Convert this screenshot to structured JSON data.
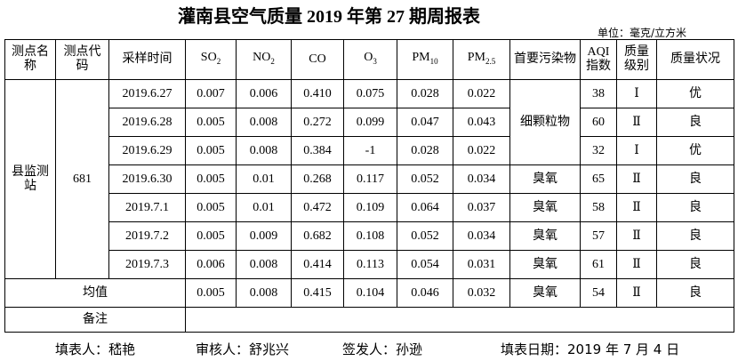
{
  "header": {
    "title": "灌南县空气质量 2019 年第 27 期周报表",
    "unit": "单位：毫克/立方米"
  },
  "table": {
    "columns": [
      {
        "text": "测点名称"
      },
      {
        "text": "测点代码"
      },
      {
        "text": "采样时间"
      },
      {
        "text": "SO",
        "sub": "2"
      },
      {
        "text": "NO",
        "sub": "2"
      },
      {
        "text": "CO"
      },
      {
        "text": "O",
        "sub": "3"
      },
      {
        "text": "PM",
        "sub": "10"
      },
      {
        "text": "PM",
        "sub": "2.5"
      },
      {
        "text": "首要污染物"
      },
      {
        "text": "AQI指数"
      },
      {
        "text": "质量级别"
      },
      {
        "text": "质量状况"
      }
    ],
    "station": "县监测站",
    "code": "681",
    "rows": [
      [
        "2019.6.27",
        "0.007",
        "0.006",
        "0.410",
        "0.075",
        "0.028",
        "0.022",
        "38",
        "Ⅰ",
        "优"
      ],
      [
        "2019.6.28",
        "0.005",
        "0.008",
        "0.272",
        "0.099",
        "0.047",
        "0.043",
        "60",
        "Ⅱ",
        "良"
      ],
      [
        "2019.6.29",
        "0.005",
        "0.008",
        "0.384",
        "-1",
        "0.028",
        "0.022",
        "32",
        "Ⅰ",
        "优"
      ],
      [
        "2019.6.30",
        "0.005",
        "0.01",
        "0.268",
        "0.117",
        "0.052",
        "0.034",
        "65",
        "Ⅱ",
        "良"
      ],
      [
        "2019.7.1",
        "0.005",
        "0.01",
        "0.472",
        "0.109",
        "0.064",
        "0.037",
        "58",
        "Ⅱ",
        "良"
      ],
      [
        "2019.7.2",
        "0.005",
        "0.009",
        "0.682",
        "0.108",
        "0.052",
        "0.034",
        "57",
        "Ⅱ",
        "良"
      ],
      [
        "2019.7.3",
        "0.006",
        "0.008",
        "0.414",
        "0.113",
        "0.054",
        "0.031",
        "61",
        "Ⅱ",
        "良"
      ]
    ],
    "pollutants": [
      {
        "text": "细颗粒物",
        "span": 3
      },
      {
        "text": "臭氧",
        "span": 1
      },
      {
        "text": "臭氧",
        "span": 1
      },
      {
        "text": "臭氧",
        "span": 1
      },
      {
        "text": "臭氧",
        "span": 1
      }
    ],
    "average": {
      "label": "均值",
      "cells": [
        "0.005",
        "0.008",
        "0.415",
        "0.104",
        "0.046",
        "0.032",
        "臭氧",
        "54",
        "Ⅱ",
        "良"
      ]
    },
    "remark": "备注"
  },
  "footer": [
    "填表人：嵇艳",
    "审核人：舒兆兴",
    "签发人：孙逊",
    "填表日期：2019 年 7 月 4 日"
  ]
}
